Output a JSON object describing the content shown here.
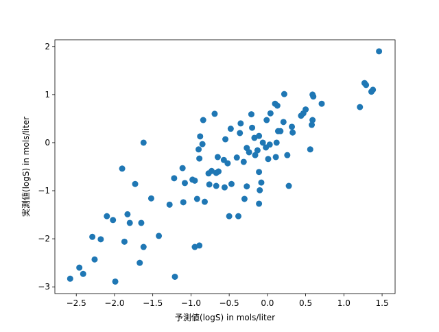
{
  "chart_data": {
    "type": "scatter",
    "x_label": "予測値(logS) in mols/liter",
    "y_label": "実測値(logS) in mols/liter",
    "color": "#1f77b4",
    "xlim": [
      -2.78,
      1.67
    ],
    "ylim": [
      -3.14,
      2.14
    ],
    "xticks": [
      {
        "value": -2.5,
        "label": "−2.5"
      },
      {
        "value": -2.0,
        "label": "−2.0"
      },
      {
        "value": -1.5,
        "label": "−1.5"
      },
      {
        "value": -1.0,
        "label": "−1.0"
      },
      {
        "value": -0.5,
        "label": "−0.5"
      },
      {
        "value": 0,
        "label": "0.0"
      },
      0.5,
      {
        "value": 1,
        "label": "1.0"
      },
      1.5
    ],
    "yticks": [
      {
        "value": -3,
        "label": "−3"
      },
      {
        "value": -2,
        "label": "−2"
      },
      {
        "value": -1,
        "label": "−1"
      },
      0,
      1,
      2
    ],
    "x": [
      -2.58,
      -2.46,
      -2.41,
      -2.29,
      -2.26,
      -2.18,
      -2.1,
      -2.02,
      -1.99,
      -1.9,
      -1.87,
      -1.83,
      -1.8,
      -1.73,
      -1.67,
      -1.65,
      -1.62,
      -1.62,
      -1.52,
      -1.42,
      -1.28,
      -1.21,
      -1.22,
      -1.11,
      -1.1,
      -1.08,
      -0.98,
      -0.95,
      -0.95,
      -0.92,
      -0.89,
      -0.9,
      -0.89,
      -0.88,
      -0.85,
      -0.84,
      -0.82,
      -0.77,
      -0.76,
      -0.73,
      -0.69,
      -0.67,
      -0.67,
      -0.65,
      -0.64,
      -0.57,
      -0.55,
      -0.56,
      -0.52,
      -0.5,
      -0.48,
      -0.47,
      -0.4,
      -0.38,
      -0.36,
      -0.35,
      -0.31,
      -0.3,
      -0.27,
      -0.27,
      -0.24,
      -0.21,
      -0.2,
      -0.17,
      -0.16,
      -0.13,
      -0.11,
      -0.11,
      -0.1,
      -0.08,
      -0.06,
      -0.11,
      -0.02,
      -0.01,
      0.01,
      0.03,
      0.04,
      0.1,
      0.12,
      0.13,
      0.11,
      0.14,
      0.17,
      0.22,
      0.21,
      0.26,
      0.28,
      0.32,
      0.33,
      0.44,
      0.47,
      0.5,
      0.56,
      0.59,
      0.58,
      0.59,
      0.6,
      0.71,
      1.21,
      1.27,
      1.29,
      1.36,
      1.38,
      1.46
    ],
    "y": [
      -2.83,
      -2.6,
      -2.73,
      -1.96,
      -2.43,
      -2.01,
      -1.53,
      -1.61,
      -2.89,
      -0.54,
      -2.06,
      -1.49,
      -1.67,
      -0.86,
      -2.5,
      -1.67,
      0.0,
      -2.17,
      -1.16,
      -1.94,
      -1.29,
      -2.79,
      -0.74,
      -0.53,
      -1.24,
      -0.84,
      -0.77,
      -0.79,
      -2.17,
      -1.17,
      -2.14,
      -0.14,
      -0.33,
      0.13,
      -0.03,
      0.47,
      -1.23,
      -0.64,
      -0.87,
      -0.59,
      0.6,
      -0.9,
      -0.63,
      -0.3,
      -0.6,
      -0.36,
      0.07,
      -0.93,
      -0.43,
      -1.53,
      0.29,
      -0.86,
      -0.31,
      -1.53,
      0.2,
      0.4,
      -0.4,
      -1.17,
      -0.11,
      -0.91,
      -0.2,
      0.59,
      0.31,
      0.1,
      -0.26,
      -0.16,
      -1.27,
      -0.61,
      -0.99,
      -0.83,
      0.0,
      0.14,
      -0.1,
      0.47,
      -0.34,
      -0.04,
      0.61,
      0.81,
      0.0,
      0.77,
      -0.3,
      0.24,
      0.24,
      1.01,
      0.43,
      -0.26,
      -0.9,
      0.33,
      0.21,
      0.56,
      0.61,
      0.69,
      -0.14,
      0.47,
      0.37,
      1.0,
      0.96,
      0.81,
      0.74,
      1.24,
      1.2,
      1.06,
      1.1,
      1.9
    ]
  }
}
